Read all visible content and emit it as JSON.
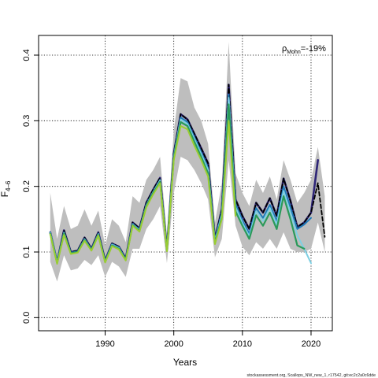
{
  "chart_data": {
    "type": "line",
    "xlabel": "Years",
    "ylabel_main": "F",
    "ylabel_sub": "4–6",
    "annotation": {
      "rho_symbol": "ρ",
      "rho_sub": "Mohn",
      "rho_value": "=-19%",
      "position": "top-right"
    },
    "source_note": "stockassessment.org, Scallops_NW_new_1, r17542, git:ec2c2a0c6dde",
    "xlim": [
      1980.3,
      2023.1
    ],
    "ylim": [
      -0.02,
      0.43
    ],
    "x_ticks": [
      1990,
      2000,
      2010,
      2020
    ],
    "y_ticks": [
      0.0,
      0.1,
      0.2,
      0.3,
      0.4
    ],
    "y_tick_labels": [
      "0.0",
      "0.1",
      "0.2",
      "0.3",
      "0.4"
    ],
    "grid": true,
    "years": [
      1982,
      1983,
      1984,
      1985,
      1986,
      1987,
      1988,
      1989,
      1990,
      1991,
      1992,
      1993,
      1994,
      1995,
      1996,
      1997,
      1998,
      1999,
      2000,
      2001,
      2002,
      2003,
      2004,
      2005,
      2006,
      2007,
      2008,
      2009,
      2010,
      2011,
      2012,
      2013,
      2014,
      2015,
      2016,
      2017,
      2018,
      2019,
      2020,
      2021,
      2022
    ],
    "confidence_band": {
      "color": "#bebebe",
      "lower": [
        0.085,
        0.055,
        0.095,
        0.072,
        0.075,
        0.088,
        0.08,
        0.095,
        0.062,
        0.085,
        0.078,
        0.062,
        0.105,
        0.105,
        0.135,
        0.15,
        0.17,
        0.083,
        0.19,
        0.245,
        0.24,
        0.225,
        0.205,
        0.18,
        0.092,
        0.12,
        0.24,
        0.14,
        0.108,
        0.095,
        0.115,
        0.105,
        0.12,
        0.105,
        0.13,
        0.105,
        0.1,
        0.1,
        0.105,
        0.145,
        0.1
      ],
      "upper": [
        0.19,
        0.12,
        0.17,
        0.135,
        0.14,
        0.165,
        0.14,
        0.163,
        0.11,
        0.15,
        0.14,
        0.115,
        0.185,
        0.175,
        0.21,
        0.225,
        0.245,
        0.125,
        0.285,
        0.365,
        0.36,
        0.32,
        0.3,
        0.265,
        0.145,
        0.205,
        0.42,
        0.22,
        0.19,
        0.17,
        0.21,
        0.19,
        0.215,
        0.18,
        0.24,
        0.21,
        0.175,
        0.19,
        0.21,
        0.26,
        0.185
      ]
    },
    "series": [
      {
        "color": "#2e2577",
        "width": 2.6,
        "dash": "",
        "years": [
          1982,
          2021
        ],
        "values": [
          0.13,
          0.085,
          0.133,
          0.1,
          0.102,
          0.122,
          0.105,
          0.13,
          0.087,
          0.113,
          0.108,
          0.09,
          0.145,
          0.136,
          0.175,
          0.195,
          0.213,
          0.105,
          0.25,
          0.31,
          0.302,
          0.28,
          0.258,
          0.235,
          0.12,
          0.165,
          0.355,
          0.18,
          0.155,
          0.135,
          0.175,
          0.16,
          0.182,
          0.155,
          0.212,
          0.178,
          0.138,
          0.145,
          0.16,
          0.24
        ]
      },
      {
        "color": "#000000",
        "width": 1.8,
        "dash": "5,3",
        "years": [
          1982,
          2022
        ],
        "values": [
          0.13,
          0.085,
          0.133,
          0.1,
          0.102,
          0.122,
          0.105,
          0.13,
          0.087,
          0.113,
          0.108,
          0.09,
          0.145,
          0.136,
          0.175,
          0.195,
          0.213,
          0.105,
          0.25,
          0.31,
          0.302,
          0.28,
          0.258,
          0.235,
          0.12,
          0.165,
          0.355,
          0.18,
          0.155,
          0.135,
          0.175,
          0.16,
          0.182,
          0.155,
          0.212,
          0.178,
          0.138,
          0.145,
          0.16,
          0.205,
          0.123
        ]
      },
      {
        "color": "#1f7ab8",
        "width": 2.0,
        "dash": "",
        "years": [
          1982,
          2020
        ],
        "values": [
          0.13,
          0.085,
          0.13,
          0.099,
          0.101,
          0.12,
          0.104,
          0.128,
          0.086,
          0.112,
          0.107,
          0.089,
          0.143,
          0.134,
          0.172,
          0.192,
          0.21,
          0.104,
          0.247,
          0.305,
          0.298,
          0.275,
          0.252,
          0.228,
          0.118,
          0.16,
          0.34,
          0.173,
          0.148,
          0.128,
          0.167,
          0.152,
          0.172,
          0.147,
          0.2,
          0.168,
          0.135,
          0.142,
          0.152
        ]
      },
      {
        "color": "#7fd0e3",
        "width": 2.0,
        "dash": "",
        "years": [
          1982,
          2020
        ],
        "values": [
          0.129,
          0.084,
          0.129,
          0.098,
          0.1,
          0.119,
          0.103,
          0.127,
          0.085,
          0.111,
          0.106,
          0.088,
          0.142,
          0.133,
          0.171,
          0.191,
          0.209,
          0.103,
          0.245,
          0.302,
          0.295,
          0.272,
          0.249,
          0.225,
          0.116,
          0.157,
          0.335,
          0.168,
          0.144,
          0.124,
          0.162,
          0.147,
          0.167,
          0.142,
          0.193,
          0.16,
          0.125,
          0.105,
          0.083
        ]
      },
      {
        "color": "#2a9a5a",
        "width": 2.2,
        "dash": "",
        "years": [
          1982,
          2019
        ],
        "values": [
          0.128,
          0.083,
          0.128,
          0.098,
          0.1,
          0.118,
          0.103,
          0.126,
          0.085,
          0.11,
          0.105,
          0.088,
          0.141,
          0.132,
          0.17,
          0.19,
          0.207,
          0.102,
          0.243,
          0.298,
          0.292,
          0.268,
          0.245,
          0.22,
          0.114,
          0.153,
          0.325,
          0.162,
          0.14,
          0.12,
          0.156,
          0.14,
          0.16,
          0.135,
          0.185,
          0.15,
          0.11,
          0.105
        ]
      },
      {
        "color": "#9acd32",
        "width": 2.0,
        "dash": "",
        "years": [
          1982,
          2009
        ],
        "values": [
          0.127,
          0.082,
          0.126,
          0.097,
          0.099,
          0.117,
          0.102,
          0.125,
          0.084,
          0.109,
          0.104,
          0.087,
          0.14,
          0.131,
          0.168,
          0.188,
          0.205,
          0.101,
          0.24,
          0.292,
          0.287,
          0.262,
          0.24,
          0.215,
          0.112,
          0.15,
          0.3,
          0.155
        ]
      }
    ]
  }
}
